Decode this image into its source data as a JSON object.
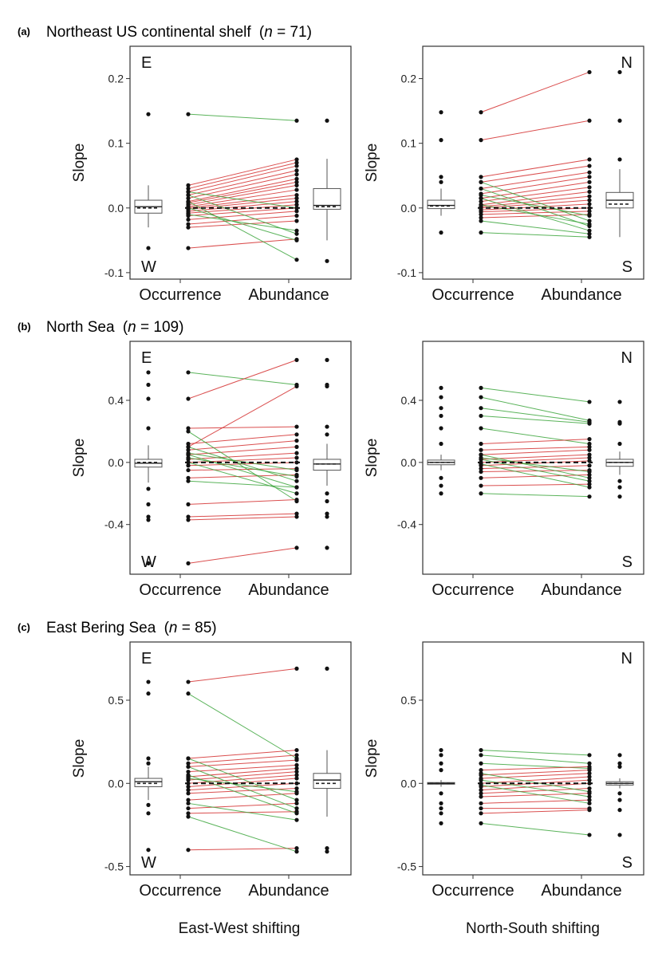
{
  "figure": {
    "rows": [
      {
        "letter": "(a)",
        "region": "Northeast US continental shelf",
        "n_label": "(n = 71)",
        "n_prefix": "(",
        "n_italic": "n",
        "n_suffix": " = 71)"
      },
      {
        "letter": "(b)",
        "region": "North Sea",
        "n_prefix": "(",
        "n_italic": "n",
        "n_suffix": " = 109)"
      },
      {
        "letter": "(c)",
        "region": "East Bering Sea",
        "n_prefix": "(",
        "n_italic": "n",
        "n_suffix": " = 85)"
      }
    ],
    "column_titles": [
      "East-West shifting",
      "North-South shifting"
    ],
    "ylabel": "Slope",
    "xcategories": [
      "Occurrence",
      "Abundance"
    ],
    "colors": {
      "increase": "#d32f2f",
      "decrease": "#3da63d",
      "point": "#111111",
      "frame": "#333333"
    }
  },
  "chart_data": [
    {
      "panel": "a-left",
      "type": "scatter",
      "subtype": "paired-slope-with-boxplots",
      "ylabel": "Slope",
      "xcategories": [
        "Occurrence",
        "Abundance"
      ],
      "corner_top": "E",
      "corner_bottom": "W",
      "ylim": [
        -0.11,
        0.25
      ],
      "yticks": [
        -0.1,
        0.0,
        0.1,
        0.2
      ],
      "ytick_labels": [
        "-0.1",
        "0.0",
        "0.1",
        "0.2"
      ],
      "dashed_line_y": 0,
      "pairs": [
        [
          0.145,
          0.135
        ],
        [
          0.035,
          0.075
        ],
        [
          0.03,
          0.07
        ],
        [
          0.025,
          0.065
        ],
        [
          0.02,
          0.058
        ],
        [
          0.015,
          0.052
        ],
        [
          0.01,
          0.045
        ],
        [
          0.008,
          0.04
        ],
        [
          0.005,
          0.035
        ],
        [
          0.002,
          0.028
        ],
        [
          0.0,
          0.02
        ],
        [
          -0.002,
          0.015
        ],
        [
          -0.005,
          0.01
        ],
        [
          -0.008,
          0.005
        ],
        [
          -0.012,
          0.0
        ],
        [
          -0.018,
          -0.005
        ],
        [
          -0.025,
          -0.012
        ],
        [
          -0.03,
          -0.02
        ],
        [
          -0.062,
          -0.048
        ],
        [
          0.02,
          -0.04
        ],
        [
          0.01,
          -0.08
        ],
        [
          0.0,
          -0.05
        ],
        [
          0.025,
          0.0
        ],
        [
          -0.01,
          -0.035
        ]
      ],
      "box_occurrence": {
        "min": -0.03,
        "q1": -0.008,
        "median": 0.002,
        "q3": 0.012,
        "max": 0.035,
        "mean": 0.0,
        "outliers": [
          0.145,
          -0.062
        ]
      },
      "box_abundance": {
        "min": -0.05,
        "q1": -0.002,
        "median": 0.004,
        "q3": 0.03,
        "max": 0.076,
        "mean": 0.002,
        "outliers": [
          0.135,
          -0.082
        ]
      }
    },
    {
      "panel": "a-right",
      "type": "scatter",
      "subtype": "paired-slope-with-boxplots",
      "ylabel": "Slope",
      "xcategories": [
        "Occurrence",
        "Abundance"
      ],
      "corner_top": "N",
      "corner_bottom": "S",
      "ylim": [
        -0.11,
        0.25
      ],
      "yticks": [
        -0.1,
        0.0,
        0.1,
        0.2
      ],
      "ytick_labels": [
        "-0.1",
        "0.0",
        "0.1",
        "0.2"
      ],
      "dashed_line_y": 0,
      "pairs": [
        [
          0.148,
          0.21
        ],
        [
          0.105,
          0.135
        ],
        [
          0.048,
          0.075
        ],
        [
          0.04,
          0.065
        ],
        [
          0.03,
          0.055
        ],
        [
          0.022,
          0.048
        ],
        [
          0.015,
          0.04
        ],
        [
          0.01,
          0.032
        ],
        [
          0.005,
          0.025
        ],
        [
          0.002,
          0.018
        ],
        [
          0.0,
          0.012
        ],
        [
          -0.003,
          0.006
        ],
        [
          -0.006,
          0.0
        ],
        [
          -0.01,
          -0.005
        ],
        [
          -0.015,
          -0.01
        ],
        [
          -0.038,
          -0.045
        ],
        [
          0.04,
          -0.02
        ],
        [
          0.03,
          -0.028
        ],
        [
          0.015,
          -0.035
        ],
        [
          0.005,
          -0.025
        ],
        [
          -0.02,
          -0.04
        ],
        [
          0.02,
          -0.012
        ]
      ],
      "box_occurrence": {
        "min": -0.012,
        "q1": -0.001,
        "median": 0.004,
        "q3": 0.012,
        "max": 0.03,
        "mean": 0.003,
        "outliers": [
          0.148,
          0.105,
          0.048,
          0.04,
          -0.038
        ]
      },
      "box_abundance": {
        "min": -0.045,
        "q1": 0.0,
        "median": 0.012,
        "q3": 0.024,
        "max": 0.06,
        "mean": 0.006,
        "outliers": [
          0.21,
          0.135,
          0.075
        ]
      }
    },
    {
      "panel": "b-left",
      "type": "scatter",
      "subtype": "paired-slope-with-boxplots",
      "ylabel": "Slope",
      "xcategories": [
        "Occurrence",
        "Abundance"
      ],
      "corner_top": "E",
      "corner_bottom": "W",
      "ylim": [
        -0.72,
        0.78
      ],
      "yticks": [
        -0.4,
        0.0,
        0.4
      ],
      "ytick_labels": [
        "-0.4",
        "0.0",
        "0.4"
      ],
      "dashed_line_y": 0,
      "pairs": [
        [
          0.58,
          0.5
        ],
        [
          0.41,
          0.66
        ],
        [
          0.22,
          0.23
        ],
        [
          0.1,
          0.49
        ],
        [
          0.12,
          0.18
        ],
        [
          0.08,
          0.14
        ],
        [
          0.05,
          0.1
        ],
        [
          0.02,
          0.06
        ],
        [
          0.0,
          0.03
        ],
        [
          -0.02,
          0.0
        ],
        [
          -0.05,
          -0.04
        ],
        [
          -0.1,
          -0.08
        ],
        [
          0.1,
          -0.12
        ],
        [
          0.05,
          -0.16
        ],
        [
          0.0,
          -0.2
        ],
        [
          0.2,
          -0.25
        ],
        [
          -0.12,
          -0.16
        ],
        [
          -0.27,
          -0.24
        ],
        [
          -0.35,
          -0.33
        ],
        [
          -0.37,
          -0.35
        ],
        [
          -0.65,
          -0.55
        ],
        [
          0.06,
          -0.05
        ],
        [
          0.03,
          -0.09
        ]
      ],
      "box_occurrence": {
        "min": -0.13,
        "q1": -0.03,
        "median": -0.005,
        "q3": 0.02,
        "max": 0.11,
        "mean": 0.0,
        "outliers": [
          0.58,
          0.5,
          0.41,
          0.22,
          -0.17,
          -0.27,
          -0.35,
          -0.37,
          -0.65
        ]
      },
      "box_abundance": {
        "min": -0.15,
        "q1": -0.05,
        "median": -0.01,
        "q3": 0.02,
        "max": 0.12,
        "mean": -0.01,
        "outliers": [
          0.66,
          0.5,
          0.49,
          0.23,
          0.18,
          -0.2,
          -0.25,
          -0.33,
          -0.35,
          -0.55
        ]
      }
    },
    {
      "panel": "b-right",
      "type": "scatter",
      "subtype": "paired-slope-with-boxplots",
      "ylabel": "Slope",
      "xcategories": [
        "Occurrence",
        "Abundance"
      ],
      "corner_top": "N",
      "corner_bottom": "S",
      "ylim": [
        -0.72,
        0.78
      ],
      "yticks": [
        -0.4,
        0.0,
        0.4
      ],
      "ytick_labels": [
        "-0.4",
        "0.0",
        "0.4"
      ],
      "dashed_line_y": 0,
      "pairs": [
        [
          0.48,
          0.39
        ],
        [
          0.42,
          0.27
        ],
        [
          0.35,
          0.26
        ],
        [
          0.3,
          0.25
        ],
        [
          0.22,
          0.12
        ],
        [
          0.12,
          0.15
        ],
        [
          0.08,
          0.1
        ],
        [
          0.05,
          0.08
        ],
        [
          0.02,
          0.05
        ],
        [
          0.0,
          0.03
        ],
        [
          -0.02,
          0.01
        ],
        [
          -0.04,
          -0.02
        ],
        [
          -0.06,
          -0.05
        ],
        [
          -0.1,
          -0.08
        ],
        [
          -0.15,
          -0.14
        ],
        [
          -0.2,
          -0.22
        ],
        [
          0.05,
          -0.1
        ],
        [
          0.02,
          -0.12
        ],
        [
          -0.01,
          -0.16
        ],
        [
          0.03,
          -0.06
        ]
      ],
      "box_occurrence": {
        "min": -0.05,
        "q1": -0.015,
        "median": 0.0,
        "q3": 0.015,
        "max": 0.05,
        "mean": 0.0,
        "outliers": [
          0.48,
          0.42,
          0.35,
          0.3,
          0.22,
          0.12,
          -0.1,
          -0.15,
          -0.2
        ]
      },
      "box_abundance": {
        "min": -0.08,
        "q1": -0.025,
        "median": 0.0,
        "q3": 0.02,
        "max": 0.07,
        "mean": 0.0,
        "outliers": [
          0.39,
          0.26,
          0.25,
          0.12,
          -0.12,
          -0.16,
          -0.22
        ]
      }
    },
    {
      "panel": "c-left",
      "type": "scatter",
      "subtype": "paired-slope-with-boxplots",
      "ylabel": "Slope",
      "xcategories": [
        "Occurrence",
        "Abundance"
      ],
      "corner_top": "E",
      "corner_bottom": "W",
      "ylim": [
        -0.55,
        0.85
      ],
      "yticks": [
        -0.5,
        0.0,
        0.5
      ],
      "ytick_labels": [
        "-0.5",
        "0.0",
        "0.5"
      ],
      "dashed_line_y": 0,
      "pairs": [
        [
          0.61,
          0.69
        ],
        [
          0.54,
          0.15
        ],
        [
          0.15,
          0.2
        ],
        [
          0.12,
          0.17
        ],
        [
          0.1,
          0.14
        ],
        [
          0.07,
          0.11
        ],
        [
          0.04,
          0.09
        ],
        [
          0.02,
          0.07
        ],
        [
          0.0,
          0.05
        ],
        [
          -0.02,
          0.03
        ],
        [
          -0.04,
          0.0
        ],
        [
          -0.06,
          -0.03
        ],
        [
          -0.1,
          -0.06
        ],
        [
          -0.15,
          -0.12
        ],
        [
          -0.18,
          -0.17
        ],
        [
          -0.4,
          -0.39
        ],
        [
          0.15,
          -0.1
        ],
        [
          0.1,
          -0.15
        ],
        [
          0.05,
          -0.18
        ],
        [
          -0.12,
          -0.22
        ],
        [
          -0.2,
          -0.41
        ],
        [
          0.03,
          -0.05
        ]
      ],
      "box_occurrence": {
        "min": -0.1,
        "q1": -0.02,
        "median": 0.01,
        "q3": 0.03,
        "max": 0.1,
        "mean": 0.0,
        "outliers": [
          0.61,
          0.54,
          0.15,
          0.12,
          -0.13,
          -0.18,
          -0.4
        ]
      },
      "box_abundance": {
        "min": -0.2,
        "q1": -0.03,
        "median": 0.02,
        "q3": 0.06,
        "max": 0.2,
        "mean": 0.0,
        "outliers": [
          0.69,
          -0.39,
          -0.41
        ]
      }
    },
    {
      "panel": "c-right",
      "type": "scatter",
      "subtype": "paired-slope-with-boxplots",
      "ylabel": "Slope",
      "xcategories": [
        "Occurrence",
        "Abundance"
      ],
      "corner_top": "N",
      "corner_bottom": "S",
      "ylim": [
        -0.55,
        0.85
      ],
      "yticks": [
        -0.5,
        0.0,
        0.5
      ],
      "ytick_labels": [
        "-0.5",
        "0.0",
        "0.5"
      ],
      "dashed_line_y": 0,
      "pairs": [
        [
          0.2,
          0.17
        ],
        [
          0.17,
          0.12
        ],
        [
          0.12,
          0.09
        ],
        [
          0.08,
          0.1
        ],
        [
          0.05,
          0.08
        ],
        [
          0.03,
          0.06
        ],
        [
          0.0,
          0.04
        ],
        [
          -0.02,
          0.02
        ],
        [
          -0.04,
          0.0
        ],
        [
          -0.06,
          -0.03
        ],
        [
          -0.08,
          -0.06
        ],
        [
          -0.12,
          -0.1
        ],
        [
          -0.15,
          -0.15
        ],
        [
          -0.18,
          -0.16
        ],
        [
          -0.24,
          -0.31
        ],
        [
          0.06,
          -0.05
        ],
        [
          0.02,
          -0.08
        ],
        [
          -0.01,
          -0.12
        ]
      ],
      "box_occurrence": {
        "min": -0.02,
        "q1": -0.005,
        "median": 0.0,
        "q3": 0.005,
        "max": 0.02,
        "mean": 0.0,
        "outliers": [
          0.2,
          0.17,
          0.12,
          0.08,
          -0.06,
          -0.12,
          -0.15,
          -0.18,
          -0.24
        ]
      },
      "box_abundance": {
        "min": -0.03,
        "q1": -0.01,
        "median": 0.0,
        "q3": 0.01,
        "max": 0.03,
        "mean": 0.0,
        "outliers": [
          0.17,
          0.12,
          0.1,
          -0.06,
          -0.1,
          -0.16,
          -0.31
        ]
      }
    }
  ]
}
